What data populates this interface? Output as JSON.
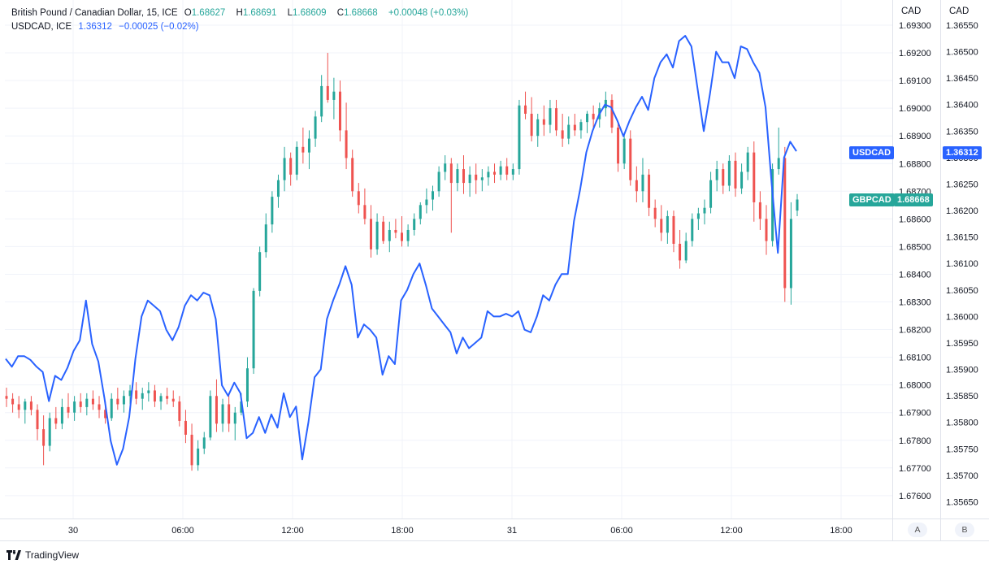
{
  "legend": {
    "main": {
      "symbol_label": "British Pound / Canadian Dollar, 15, ICE",
      "open_label": "O",
      "open": "1.68627",
      "high_label": "H",
      "high": "1.68691",
      "low_label": "L",
      "low": "1.68609",
      "close_label": "C",
      "close": "1.68668",
      "change": "+0.00048 (+0.03%)"
    },
    "compare": {
      "symbol_label": "USDCAD, ICE",
      "last": "1.36312",
      "change": "−0.00025 (−0.02%)"
    }
  },
  "axes": {
    "scale_a_title": "CAD",
    "scale_b_title": "CAD",
    "scale_a_button": "A",
    "scale_b_button": "B"
  },
  "tags": {
    "usdcad_name": "USDCAD",
    "usdcad_value": "1.36312",
    "gbpcad_name": "GBPCAD",
    "gbpcad_value": "1.68668"
  },
  "footer": {
    "brand": "TradingView"
  },
  "colors": {
    "up": "#26a69a",
    "down": "#ef5350",
    "compare_line": "#2962ff",
    "grid": "#f0f3fa"
  },
  "chart_data": [
    {
      "type": "candlestick",
      "name": "GBPCAD",
      "axis": "A",
      "ylim": [
        1.6755,
        1.6935
      ],
      "yticks": [
        "1.67600",
        "1.67700",
        "1.67800",
        "1.67900",
        "1.68000",
        "1.68100",
        "1.68200",
        "1.68300",
        "1.68400",
        "1.68500",
        "1.68600",
        "1.68700",
        "1.68800",
        "1.68900",
        "1.69000",
        "1.69100",
        "1.69200",
        "1.69300"
      ],
      "x_labels": [
        "30",
        "06:00",
        "12:00",
        "18:00",
        "31",
        "06:00",
        "12:00",
        "18:00"
      ],
      "ohlc": [
        [
          1.6796,
          1.6799,
          1.6792,
          1.6795
        ],
        [
          1.6795,
          1.6797,
          1.679,
          1.6793
        ],
        [
          1.6793,
          1.6796,
          1.6788,
          1.6791
        ],
        [
          1.6791,
          1.6795,
          1.6786,
          1.6794
        ],
        [
          1.6794,
          1.6796,
          1.6789,
          1.6791
        ],
        [
          1.6791,
          1.6793,
          1.678,
          1.6784
        ],
        [
          1.6784,
          1.6789,
          1.6771,
          1.6778
        ],
        [
          1.6778,
          1.679,
          1.6776,
          1.6788
        ],
        [
          1.6788,
          1.6792,
          1.6784,
          1.6786
        ],
        [
          1.6786,
          1.6795,
          1.6784,
          1.6792
        ],
        [
          1.6792,
          1.6797,
          1.6788,
          1.679
        ],
        [
          1.679,
          1.6796,
          1.6787,
          1.6794
        ],
        [
          1.6794,
          1.6797,
          1.679,
          1.6792
        ],
        [
          1.6792,
          1.6797,
          1.6789,
          1.6795
        ],
        [
          1.6795,
          1.6798,
          1.6791,
          1.6793
        ],
        [
          1.6793,
          1.6796,
          1.6788,
          1.6791
        ],
        [
          1.6791,
          1.6794,
          1.6786,
          1.6788
        ],
        [
          1.6788,
          1.6797,
          1.6787,
          1.6795
        ],
        [
          1.6795,
          1.6799,
          1.6791,
          1.6793
        ],
        [
          1.6793,
          1.6798,
          1.679,
          1.6796
        ],
        [
          1.6796,
          1.68,
          1.6793,
          1.6798
        ],
        [
          1.6798,
          1.6801,
          1.6793,
          1.6795
        ],
        [
          1.6795,
          1.6799,
          1.6791,
          1.6797
        ],
        [
          1.6797,
          1.6801,
          1.6794,
          1.6798
        ],
        [
          1.6798,
          1.68,
          1.6792,
          1.6794
        ],
        [
          1.6794,
          1.6797,
          1.6791,
          1.6796
        ],
        [
          1.6796,
          1.6799,
          1.6793,
          1.6795
        ],
        [
          1.6795,
          1.6798,
          1.6792,
          1.6794
        ],
        [
          1.6794,
          1.6796,
          1.6785,
          1.6787
        ],
        [
          1.6787,
          1.6791,
          1.6779,
          1.6782
        ],
        [
          1.6782,
          1.6786,
          1.6769,
          1.6771
        ],
        [
          1.6771,
          1.678,
          1.6769,
          1.6777
        ],
        [
          1.6777,
          1.6783,
          1.6775,
          1.6781
        ],
        [
          1.6781,
          1.6798,
          1.678,
          1.6796
        ],
        [
          1.6796,
          1.6802,
          1.6783,
          1.6786
        ],
        [
          1.6786,
          1.6795,
          1.6783,
          1.6793
        ],
        [
          1.6793,
          1.6797,
          1.6783,
          1.6786
        ],
        [
          1.6786,
          1.6792,
          1.678,
          1.679
        ],
        [
          1.679,
          1.6797,
          1.6789,
          1.6794
        ],
        [
          1.6794,
          1.681,
          1.6792,
          1.6806
        ],
        [
          1.6806,
          1.6835,
          1.6804,
          1.6834
        ],
        [
          1.6834,
          1.685,
          1.6832,
          1.6848
        ],
        [
          1.6848,
          1.6862,
          1.6846,
          1.6858
        ],
        [
          1.6858,
          1.687,
          1.6855,
          1.6868
        ],
        [
          1.6868,
          1.6876,
          1.6864,
          1.6874
        ],
        [
          1.6874,
          1.6886,
          1.687,
          1.6882
        ],
        [
          1.6882,
          1.6884,
          1.6872,
          1.6876
        ],
        [
          1.6876,
          1.6888,
          1.6874,
          1.6886
        ],
        [
          1.6886,
          1.6893,
          1.688,
          1.6884
        ],
        [
          1.6884,
          1.6892,
          1.6878,
          1.6889
        ],
        [
          1.6889,
          1.6899,
          1.6886,
          1.6897
        ],
        [
          1.6897,
          1.6912,
          1.6895,
          1.6908
        ],
        [
          1.6908,
          1.692,
          1.6902,
          1.6903
        ],
        [
          1.6903,
          1.6911,
          1.6896,
          1.6906
        ],
        [
          1.6906,
          1.691,
          1.6888,
          1.6892
        ],
        [
          1.6892,
          1.6902,
          1.6878,
          1.6882
        ],
        [
          1.6882,
          1.6885,
          1.6868,
          1.687
        ],
        [
          1.687,
          1.6873,
          1.6862,
          1.6865
        ],
        [
          1.6865,
          1.6871,
          1.6858,
          1.686
        ],
        [
          1.686,
          1.6865,
          1.6846,
          1.6849
        ],
        [
          1.6849,
          1.6862,
          1.6847,
          1.6859
        ],
        [
          1.6859,
          1.6861,
          1.6851,
          1.6852
        ],
        [
          1.6852,
          1.6859,
          1.6848,
          1.6856
        ],
        [
          1.6856,
          1.686,
          1.6853,
          1.6855
        ],
        [
          1.6855,
          1.6861,
          1.685,
          1.6852
        ],
        [
          1.6852,
          1.6858,
          1.685,
          1.6856
        ],
        [
          1.6856,
          1.6862,
          1.6854,
          1.686
        ],
        [
          1.686,
          1.6866,
          1.6858,
          1.6865
        ],
        [
          1.6865,
          1.6871,
          1.6862,
          1.6867
        ],
        [
          1.6867,
          1.6872,
          1.6863,
          1.687
        ],
        [
          1.687,
          1.6879,
          1.6868,
          1.6877
        ],
        [
          1.6877,
          1.6883,
          1.6874,
          1.688
        ],
        [
          1.688,
          1.6882,
          1.6855,
          1.6873
        ],
        [
          1.6873,
          1.688,
          1.687,
          1.6878
        ],
        [
          1.6878,
          1.6883,
          1.6869,
          1.6873
        ],
        [
          1.6873,
          1.6879,
          1.6868,
          1.6876
        ],
        [
          1.6876,
          1.688,
          1.6869,
          1.6874
        ],
        [
          1.6874,
          1.6878,
          1.687,
          1.6875
        ],
        [
          1.6875,
          1.6879,
          1.6872,
          1.6877
        ],
        [
          1.6877,
          1.688,
          1.6873,
          1.6876
        ],
        [
          1.6876,
          1.6881,
          1.6874,
          1.6879
        ],
        [
          1.6879,
          1.6882,
          1.6874,
          1.6876
        ],
        [
          1.6876,
          1.688,
          1.6874,
          1.6878
        ],
        [
          1.6878,
          1.6903,
          1.6876,
          1.6901
        ],
        [
          1.6901,
          1.6906,
          1.6896,
          1.6898
        ],
        [
          1.6898,
          1.6904,
          1.6888,
          1.689
        ],
        [
          1.689,
          1.6898,
          1.6886,
          1.6896
        ],
        [
          1.6896,
          1.6901,
          1.689,
          1.6894
        ],
        [
          1.6894,
          1.6903,
          1.6891,
          1.69
        ],
        [
          1.69,
          1.6903,
          1.689,
          1.6892
        ],
        [
          1.6892,
          1.6898,
          1.6886,
          1.6889
        ],
        [
          1.6889,
          1.6897,
          1.6887,
          1.6894
        ],
        [
          1.6894,
          1.6898,
          1.689,
          1.6892
        ],
        [
          1.6892,
          1.6896,
          1.6889,
          1.6895
        ],
        [
          1.6895,
          1.6899,
          1.6891,
          1.6898
        ],
        [
          1.6898,
          1.6901,
          1.6893,
          1.6896
        ],
        [
          1.6896,
          1.6902,
          1.6893,
          1.69
        ],
        [
          1.69,
          1.6906,
          1.6897,
          1.6903
        ],
        [
          1.6903,
          1.6905,
          1.6891,
          1.6893
        ],
        [
          1.6893,
          1.6895,
          1.6877,
          1.688
        ],
        [
          1.688,
          1.6891,
          1.6878,
          1.6889
        ],
        [
          1.6889,
          1.6892,
          1.6872,
          1.6874
        ],
        [
          1.6874,
          1.6879,
          1.6866,
          1.687
        ],
        [
          1.687,
          1.6882,
          1.6866,
          1.6876
        ],
        [
          1.6876,
          1.6878,
          1.6861,
          1.6864
        ],
        [
          1.6864,
          1.6867,
          1.6857,
          1.686
        ],
        [
          1.686,
          1.6865,
          1.6852,
          1.6855
        ],
        [
          1.6855,
          1.6863,
          1.6851,
          1.6861
        ],
        [
          1.6861,
          1.6863,
          1.6848,
          1.6851
        ],
        [
          1.6851,
          1.6856,
          1.6842,
          1.6845
        ],
        [
          1.6845,
          1.6855,
          1.6844,
          1.6852
        ],
        [
          1.6852,
          1.6862,
          1.685,
          1.686
        ],
        [
          1.686,
          1.6864,
          1.6856,
          1.6862
        ],
        [
          1.6862,
          1.6867,
          1.6858,
          1.6864
        ],
        [
          1.6864,
          1.6877,
          1.6862,
          1.6874
        ],
        [
          1.6874,
          1.6881,
          1.687,
          1.6878
        ],
        [
          1.6878,
          1.688,
          1.6869,
          1.6872
        ],
        [
          1.6872,
          1.6883,
          1.687,
          1.6881
        ],
        [
          1.6881,
          1.6884,
          1.6868,
          1.6871
        ],
        [
          1.6871,
          1.688,
          1.6869,
          1.6877
        ],
        [
          1.6877,
          1.6886,
          1.6874,
          1.6884
        ],
        [
          1.6884,
          1.6888,
          1.6859,
          1.6866
        ],
        [
          1.6866,
          1.687,
          1.6856,
          1.686
        ],
        [
          1.686,
          1.6865,
          1.6847,
          1.6852
        ],
        [
          1.6852,
          1.688,
          1.685,
          1.6878
        ],
        [
          1.6878,
          1.6893,
          1.6876,
          1.6882
        ],
        [
          1.6882,
          1.6886,
          1.683,
          1.6835
        ],
        [
          1.6835,
          1.6866,
          1.6829,
          1.686
        ],
        [
          1.6863,
          1.6869,
          1.6861,
          1.6867
        ]
      ]
    },
    {
      "type": "line",
      "name": "USDCAD",
      "axis": "B",
      "ylim": [
        1.3562,
        1.3657
      ],
      "yticks": [
        "1.35650",
        "1.35700",
        "1.35750",
        "1.35800",
        "1.35850",
        "1.35900",
        "1.35950",
        "1.36000",
        "1.36050",
        "1.36100",
        "1.36150",
        "1.36200",
        "1.36250",
        "1.36300",
        "1.36350",
        "1.36400",
        "1.36450",
        "1.36500",
        "1.36550"
      ],
      "values": [
        1.3592,
        1.35905,
        1.35925,
        1.35925,
        1.35918,
        1.35905,
        1.35895,
        1.3584,
        1.35888,
        1.3588,
        1.35903,
        1.35935,
        1.35955,
        1.3603,
        1.35948,
        1.35915,
        1.35845,
        1.35765,
        1.3572,
        1.3575,
        1.3581,
        1.3592,
        1.36,
        1.3603,
        1.3602,
        1.3601,
        1.35975,
        1.35955,
        1.3598,
        1.3602,
        1.3604,
        1.3603,
        1.36045,
        1.3604,
        1.35995,
        1.3587,
        1.3585,
        1.35875,
        1.35855,
        1.3577,
        1.3578,
        1.3581,
        1.3578,
        1.35815,
        1.3579,
        1.35855,
        1.3581,
        1.3583,
        1.3573,
        1.358,
        1.35885,
        1.359,
        1.35995,
        1.3603,
        1.3606,
        1.36095,
        1.3606,
        1.3596,
        1.35985,
        1.35975,
        1.3596,
        1.3589,
        1.35925,
        1.3591,
        1.3603,
        1.3605,
        1.3608,
        1.361,
        1.3606,
        1.36015,
        1.36,
        1.35985,
        1.3597,
        1.3593,
        1.3596,
        1.3594,
        1.3595,
        1.3596,
        1.3601,
        1.36,
        1.36,
        1.36005,
        1.36,
        1.3601,
        1.35975,
        1.3597,
        1.36,
        1.3604,
        1.3603,
        1.3606,
        1.3608,
        1.3608,
        1.3618,
        1.3624,
        1.3631,
        1.3635,
        1.3638,
        1.364,
        1.36395,
        1.3637,
        1.3634,
        1.3637,
        1.36395,
        1.36415,
        1.3639,
        1.3645,
        1.3648,
        1.36495,
        1.3647,
        1.3652,
        1.3653,
        1.3651,
        1.3643,
        1.3635,
        1.3642,
        1.365,
        1.3648,
        1.3648,
        1.3645,
        1.3651,
        1.36505,
        1.3648,
        1.3646,
        1.36395,
        1.3625,
        1.3612,
        1.363,
        1.3633,
        1.36312
      ]
    }
  ]
}
